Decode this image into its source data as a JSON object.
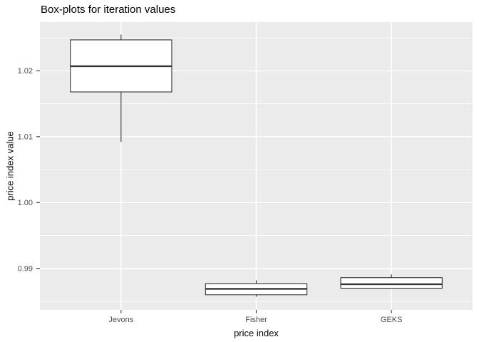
{
  "chart_data": {
    "type": "boxplot",
    "title": "Box-plots for iteration values",
    "xlabel": "price index",
    "ylabel": "price index value",
    "categories": [
      "Jevons",
      "Fisher",
      "GEKS"
    ],
    "series": [
      {
        "name": "Jevons",
        "whisker_low": 1.0092,
        "q1": 1.0168,
        "median": 1.0207,
        "q3": 1.0247,
        "whisker_high": 1.0255
      },
      {
        "name": "Fisher",
        "whisker_low": 0.9857,
        "q1": 0.986,
        "median": 0.9869,
        "q3": 0.9877,
        "whisker_high": 0.9882
      },
      {
        "name": "GEKS",
        "whisker_low": 0.987,
        "q1": 0.987,
        "median": 0.9876,
        "q3": 0.9886,
        "whisker_high": 0.9891
      }
    ],
    "ylim": [
      0.9837,
      1.0274
    ],
    "yticks": [
      0.99,
      1.0,
      1.01,
      1.02
    ],
    "ytick_labels": [
      "0.99",
      "1.00",
      "1.01",
      "1.02"
    ],
    "minor_gridlines": [
      0.985,
      0.995,
      1.005,
      1.015,
      1.025
    ],
    "grid": "major-and-minor",
    "legend": "none"
  },
  "colors": {
    "panel_bg": "#EBEBEB",
    "gridline": "#FFFFFF",
    "box_stroke": "#333333",
    "box_fill": "#FFFFFF",
    "tick_mark": "#333333",
    "tick_label": "#4D4D4D",
    "axis_title": "#000000",
    "title": "#000000"
  }
}
